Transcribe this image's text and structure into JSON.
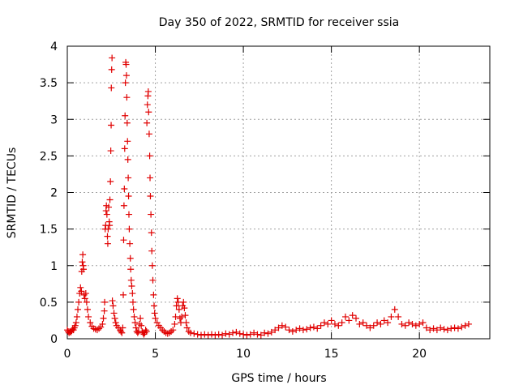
{
  "chart_data": {
    "type": "scatter",
    "title": "Day 350 of 2022, SRMTID for receiver ssia",
    "xlabel": "GPS time / hours",
    "ylabel": "SRMTID / TECUs",
    "xlim": [
      0,
      24
    ],
    "ylim": [
      0,
      4
    ],
    "xticks": [
      0,
      5,
      10,
      15,
      20
    ],
    "yticks": [
      0,
      0.5,
      1,
      1.5,
      2,
      2.5,
      3,
      3.5,
      4
    ],
    "grid": true,
    "marker": "+",
    "marker_color": "#e00000",
    "series": [
      {
        "name": "SRMTID",
        "points": [
          [
            0.0,
            0.12
          ],
          [
            0.05,
            0.1
          ],
          [
            0.1,
            0.08
          ],
          [
            0.15,
            0.1
          ],
          [
            0.2,
            0.09
          ],
          [
            0.25,
            0.11
          ],
          [
            0.3,
            0.13
          ],
          [
            0.35,
            0.12
          ],
          [
            0.4,
            0.15
          ],
          [
            0.45,
            0.18
          ],
          [
            0.5,
            0.22
          ],
          [
            0.55,
            0.3
          ],
          [
            0.6,
            0.4
          ],
          [
            0.65,
            0.5
          ],
          [
            0.7,
            0.62
          ],
          [
            0.75,
            0.7
          ],
          [
            0.8,
            0.65
          ],
          [
            0.82,
            0.92
          ],
          [
            0.85,
            1.05
          ],
          [
            0.88,
            1.15
          ],
          [
            0.9,
            1.0
          ],
          [
            0.92,
            0.95
          ],
          [
            0.95,
            0.6
          ],
          [
            1.0,
            0.55
          ],
          [
            1.05,
            0.62
          ],
          [
            1.1,
            0.5
          ],
          [
            1.15,
            0.4
          ],
          [
            1.2,
            0.3
          ],
          [
            1.3,
            0.22
          ],
          [
            1.4,
            0.17
          ],
          [
            1.5,
            0.14
          ],
          [
            1.6,
            0.13
          ],
          [
            1.7,
            0.12
          ],
          [
            1.8,
            0.14
          ],
          [
            1.9,
            0.16
          ],
          [
            2.0,
            0.2
          ],
          [
            2.05,
            0.28
          ],
          [
            2.1,
            0.38
          ],
          [
            2.12,
            0.5
          ],
          [
            2.15,
            1.5
          ],
          [
            2.18,
            1.55
          ],
          [
            2.2,
            1.75
          ],
          [
            2.22,
            1.82
          ],
          [
            2.25,
            1.7
          ],
          [
            2.28,
            1.4
          ],
          [
            2.3,
            1.3
          ],
          [
            2.32,
            1.5
          ],
          [
            2.35,
            1.8
          ],
          [
            2.38,
            1.6
          ],
          [
            2.4,
            1.55
          ],
          [
            2.42,
            1.9
          ],
          [
            2.45,
            2.15
          ],
          [
            2.47,
            2.57
          ],
          [
            2.49,
            2.92
          ],
          [
            2.5,
            3.43
          ],
          [
            2.52,
            3.68
          ],
          [
            2.54,
            3.84
          ],
          [
            2.56,
            0.52
          ],
          [
            2.6,
            0.45
          ],
          [
            2.65,
            0.35
          ],
          [
            2.7,
            0.28
          ],
          [
            2.75,
            0.22
          ],
          [
            2.8,
            0.18
          ],
          [
            2.9,
            0.15
          ],
          [
            3.0,
            0.12
          ],
          [
            3.05,
            0.1
          ],
          [
            3.1,
            0.08
          ],
          [
            3.15,
            0.15
          ],
          [
            3.18,
            0.6
          ],
          [
            3.2,
            1.35
          ],
          [
            3.22,
            1.82
          ],
          [
            3.24,
            2.05
          ],
          [
            3.26,
            2.6
          ],
          [
            3.28,
            3.05
          ],
          [
            3.3,
            3.5
          ],
          [
            3.32,
            3.78
          ],
          [
            3.34,
            3.75
          ],
          [
            3.36,
            3.6
          ],
          [
            3.38,
            3.3
          ],
          [
            3.4,
            2.95
          ],
          [
            3.42,
            2.7
          ],
          [
            3.44,
            2.45
          ],
          [
            3.46,
            2.2
          ],
          [
            3.48,
            1.95
          ],
          [
            3.5,
            1.7
          ],
          [
            3.52,
            1.5
          ],
          [
            3.55,
            1.3
          ],
          [
            3.58,
            1.1
          ],
          [
            3.6,
            0.95
          ],
          [
            3.63,
            0.8
          ],
          [
            3.66,
            0.72
          ],
          [
            3.7,
            0.62
          ],
          [
            3.73,
            0.5
          ],
          [
            3.76,
            0.4
          ],
          [
            3.8,
            0.3
          ],
          [
            3.85,
            0.22
          ],
          [
            3.9,
            0.15
          ],
          [
            3.95,
            0.1
          ],
          [
            4.0,
            0.08
          ],
          [
            4.05,
            0.1
          ],
          [
            4.1,
            0.2
          ],
          [
            4.15,
            0.28
          ],
          [
            4.2,
            0.18
          ],
          [
            4.25,
            0.1
          ],
          [
            4.3,
            0.08
          ],
          [
            4.35,
            0.06
          ],
          [
            4.4,
            0.08
          ],
          [
            4.45,
            0.12
          ],
          [
            4.5,
            0.1
          ],
          [
            4.52,
            2.95
          ],
          [
            4.55,
            3.2
          ],
          [
            4.58,
            3.32
          ],
          [
            4.6,
            3.38
          ],
          [
            4.62,
            3.1
          ],
          [
            4.65,
            2.8
          ],
          [
            4.68,
            2.5
          ],
          [
            4.7,
            2.2
          ],
          [
            4.72,
            1.95
          ],
          [
            4.75,
            1.7
          ],
          [
            4.78,
            1.45
          ],
          [
            4.8,
            1.2
          ],
          [
            4.83,
            1.0
          ],
          [
            4.86,
            0.8
          ],
          [
            4.9,
            0.6
          ],
          [
            4.93,
            0.45
          ],
          [
            4.96,
            0.35
          ],
          [
            5.0,
            0.28
          ],
          [
            5.1,
            0.22
          ],
          [
            5.2,
            0.18
          ],
          [
            5.3,
            0.15
          ],
          [
            5.4,
            0.12
          ],
          [
            5.5,
            0.1
          ],
          [
            5.6,
            0.08
          ],
          [
            5.7,
            0.07
          ],
          [
            5.8,
            0.08
          ],
          [
            5.9,
            0.1
          ],
          [
            6.0,
            0.12
          ],
          [
            6.1,
            0.2
          ],
          [
            6.15,
            0.3
          ],
          [
            6.2,
            0.45
          ],
          [
            6.25,
            0.55
          ],
          [
            6.3,
            0.5
          ],
          [
            6.35,
            0.4
          ],
          [
            6.4,
            0.28
          ],
          [
            6.45,
            0.22
          ],
          [
            6.5,
            0.3
          ],
          [
            6.55,
            0.45
          ],
          [
            6.6,
            0.5
          ],
          [
            6.65,
            0.42
          ],
          [
            6.7,
            0.32
          ],
          [
            6.75,
            0.22
          ],
          [
            6.8,
            0.15
          ],
          [
            6.9,
            0.1
          ],
          [
            7.0,
            0.08
          ],
          [
            7.2,
            0.07
          ],
          [
            7.4,
            0.06
          ],
          [
            7.6,
            0.05
          ],
          [
            7.8,
            0.06
          ],
          [
            8.0,
            0.05
          ],
          [
            8.2,
            0.06
          ],
          [
            8.4,
            0.05
          ],
          [
            8.6,
            0.06
          ],
          [
            8.8,
            0.05
          ],
          [
            9.0,
            0.07
          ],
          [
            9.2,
            0.06
          ],
          [
            9.4,
            0.08
          ],
          [
            9.6,
            0.09
          ],
          [
            9.8,
            0.07
          ],
          [
            10.0,
            0.06
          ],
          [
            10.2,
            0.05
          ],
          [
            10.4,
            0.06
          ],
          [
            10.6,
            0.08
          ],
          [
            10.8,
            0.06
          ],
          [
            11.0,
            0.05
          ],
          [
            11.2,
            0.08
          ],
          [
            11.4,
            0.07
          ],
          [
            11.6,
            0.09
          ],
          [
            11.8,
            0.12
          ],
          [
            12.0,
            0.15
          ],
          [
            12.2,
            0.18
          ],
          [
            12.4,
            0.16
          ],
          [
            12.6,
            0.12
          ],
          [
            12.8,
            0.1
          ],
          [
            13.0,
            0.12
          ],
          [
            13.2,
            0.14
          ],
          [
            13.4,
            0.12
          ],
          [
            13.6,
            0.13
          ],
          [
            13.8,
            0.15
          ],
          [
            14.0,
            0.16
          ],
          [
            14.2,
            0.14
          ],
          [
            14.4,
            0.18
          ],
          [
            14.6,
            0.22
          ],
          [
            14.8,
            0.2
          ],
          [
            15.0,
            0.25
          ],
          [
            15.2,
            0.2
          ],
          [
            15.4,
            0.18
          ],
          [
            15.6,
            0.22
          ],
          [
            15.8,
            0.3
          ],
          [
            16.0,
            0.25
          ],
          [
            16.2,
            0.32
          ],
          [
            16.4,
            0.28
          ],
          [
            16.6,
            0.2
          ],
          [
            16.8,
            0.22
          ],
          [
            17.0,
            0.18
          ],
          [
            17.2,
            0.15
          ],
          [
            17.4,
            0.18
          ],
          [
            17.6,
            0.22
          ],
          [
            17.8,
            0.2
          ],
          [
            18.0,
            0.25
          ],
          [
            18.2,
            0.22
          ],
          [
            18.4,
            0.3
          ],
          [
            18.6,
            0.4
          ],
          [
            18.8,
            0.3
          ],
          [
            19.0,
            0.2
          ],
          [
            19.2,
            0.18
          ],
          [
            19.4,
            0.22
          ],
          [
            19.6,
            0.2
          ],
          [
            19.8,
            0.18
          ],
          [
            20.0,
            0.2
          ],
          [
            20.2,
            0.22
          ],
          [
            20.4,
            0.15
          ],
          [
            20.6,
            0.12
          ],
          [
            20.8,
            0.14
          ],
          [
            21.0,
            0.12
          ],
          [
            21.2,
            0.15
          ],
          [
            21.4,
            0.13
          ],
          [
            21.6,
            0.12
          ],
          [
            21.8,
            0.14
          ],
          [
            22.0,
            0.15
          ],
          [
            22.2,
            0.14
          ],
          [
            22.4,
            0.16
          ],
          [
            22.6,
            0.18
          ],
          [
            22.8,
            0.2
          ]
        ]
      }
    ]
  }
}
